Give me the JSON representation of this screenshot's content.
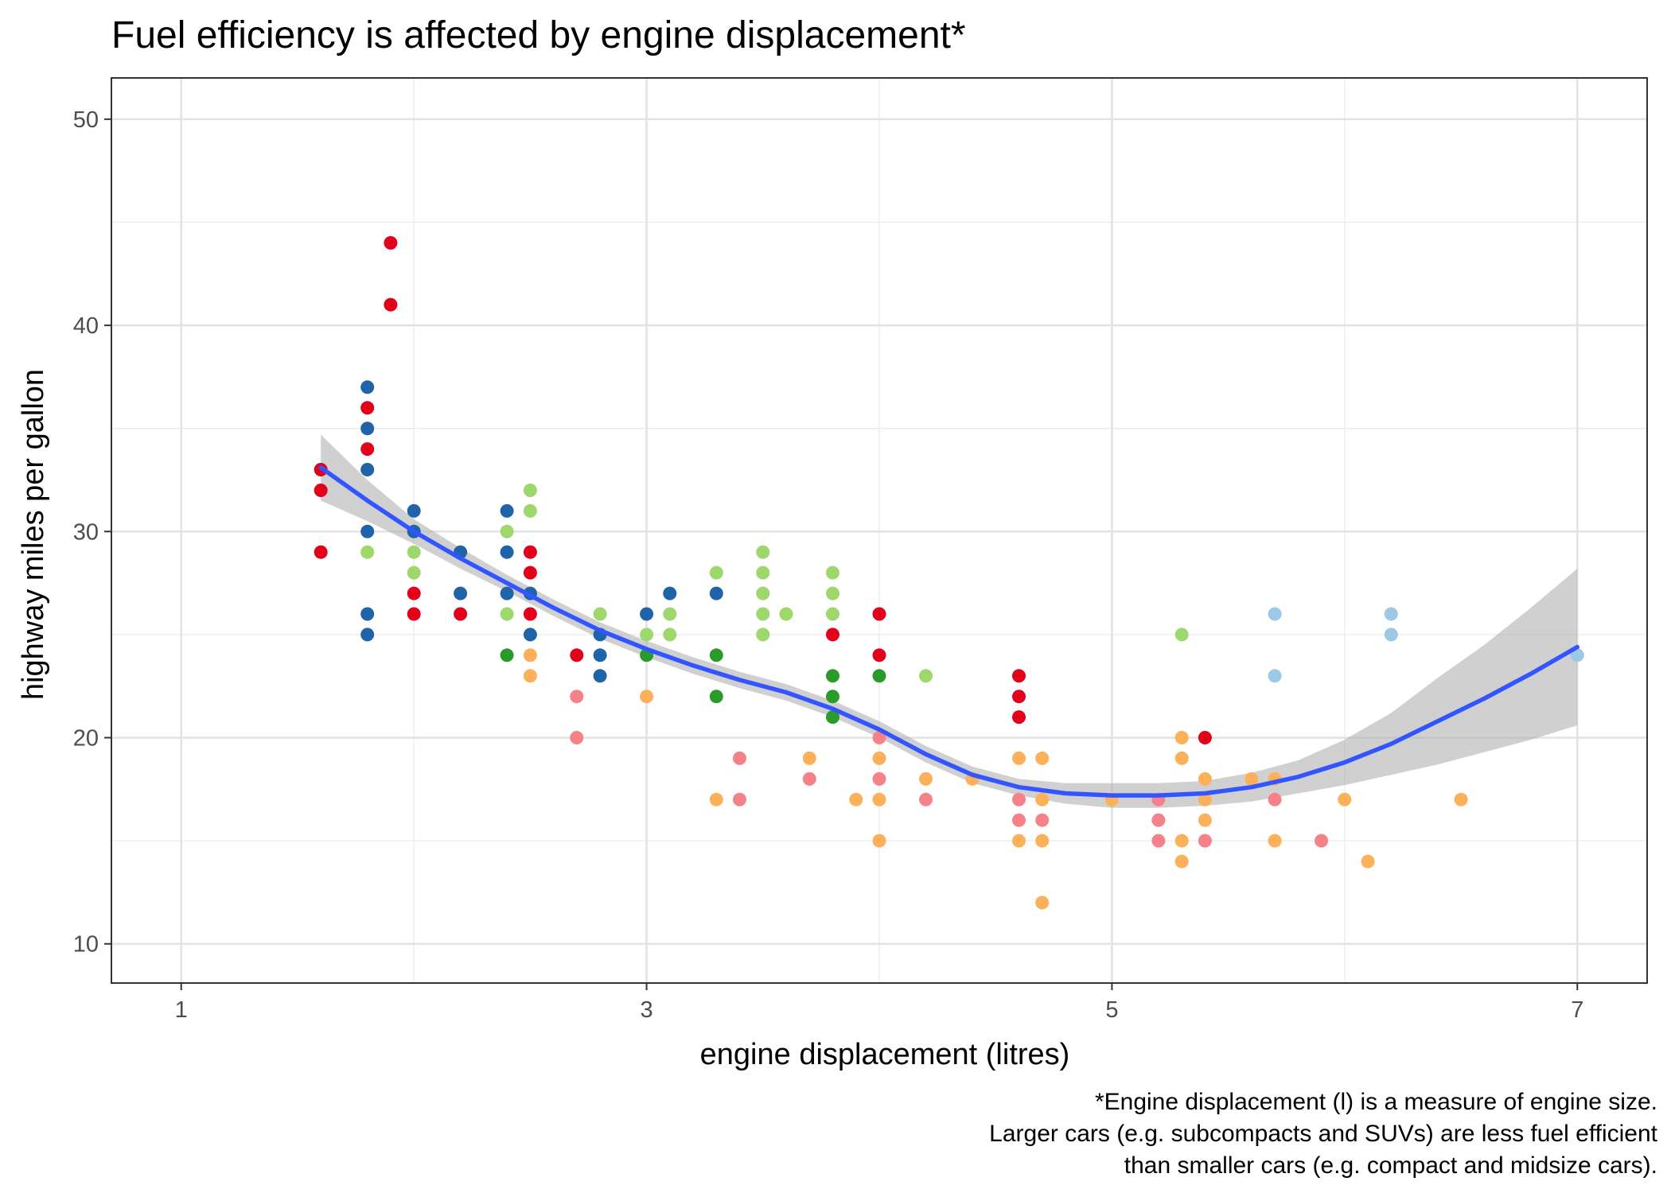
{
  "chart_data": {
    "type": "scatter",
    "title": "Fuel efficiency is affected by engine displacement*",
    "xlabel": "engine displacement (litres)",
    "ylabel": "highway miles per gallon",
    "xlim": [
      0.7,
      7.3
    ],
    "ylim": [
      8.1,
      52
    ],
    "x_ticks": [
      1,
      3,
      5,
      7
    ],
    "y_ticks": [
      10,
      20,
      30,
      40,
      50
    ],
    "grid": true,
    "legend": "none",
    "caption": [
      "*Engine displacement (l) is a measure of engine size.",
      "Larger cars (e.g. subcompacts and SUVs) are less fuel efficient",
      "than smaller cars (e.g. compact and midsize cars)."
    ],
    "colors": {
      "red": "#e3001b",
      "blue": "#1f63a8",
      "lightgreen": "#9ed86c",
      "darkgreen": "#2a9a2a",
      "orange": "#fdb05a",
      "pink": "#f58189",
      "lightblue": "#9dc8e6",
      "smooth": "#3355ff",
      "band": "#b3b3b3"
    },
    "points": [
      {
        "x": 1.6,
        "y": 33,
        "c": "red"
      },
      {
        "x": 1.6,
        "y": 32,
        "c": "red"
      },
      {
        "x": 1.6,
        "y": 29,
        "c": "red"
      },
      {
        "x": 1.8,
        "y": 37,
        "c": "blue"
      },
      {
        "x": 1.8,
        "y": 36,
        "c": "red"
      },
      {
        "x": 1.8,
        "y": 35,
        "c": "blue"
      },
      {
        "x": 1.8,
        "y": 34,
        "c": "red"
      },
      {
        "x": 1.8,
        "y": 33,
        "c": "blue"
      },
      {
        "x": 1.8,
        "y": 30,
        "c": "blue"
      },
      {
        "x": 1.8,
        "y": 29,
        "c": "lightgreen"
      },
      {
        "x": 1.8,
        "y": 26,
        "c": "blue"
      },
      {
        "x": 1.8,
        "y": 25,
        "c": "blue"
      },
      {
        "x": 1.9,
        "y": 44,
        "c": "red"
      },
      {
        "x": 1.9,
        "y": 41,
        "c": "red"
      },
      {
        "x": 2.0,
        "y": 31,
        "c": "blue"
      },
      {
        "x": 2.0,
        "y": 30,
        "c": "blue"
      },
      {
        "x": 2.0,
        "y": 29,
        "c": "lightgreen"
      },
      {
        "x": 2.0,
        "y": 28,
        "c": "lightgreen"
      },
      {
        "x": 2.0,
        "y": 27,
        "c": "red"
      },
      {
        "x": 2.0,
        "y": 26,
        "c": "red"
      },
      {
        "x": 2.2,
        "y": 29,
        "c": "blue"
      },
      {
        "x": 2.2,
        "y": 27,
        "c": "blue"
      },
      {
        "x": 2.2,
        "y": 26,
        "c": "red"
      },
      {
        "x": 2.4,
        "y": 31,
        "c": "blue"
      },
      {
        "x": 2.4,
        "y": 30,
        "c": "lightgreen"
      },
      {
        "x": 2.4,
        "y": 29,
        "c": "blue"
      },
      {
        "x": 2.4,
        "y": 27,
        "c": "blue"
      },
      {
        "x": 2.4,
        "y": 26,
        "c": "lightgreen"
      },
      {
        "x": 2.4,
        "y": 24,
        "c": "darkgreen"
      },
      {
        "x": 2.5,
        "y": 32,
        "c": "lightgreen"
      },
      {
        "x": 2.5,
        "y": 31,
        "c": "lightgreen"
      },
      {
        "x": 2.5,
        "y": 29,
        "c": "red"
      },
      {
        "x": 2.5,
        "y": 28,
        "c": "red"
      },
      {
        "x": 2.5,
        "y": 27,
        "c": "blue"
      },
      {
        "x": 2.5,
        "y": 26,
        "c": "red"
      },
      {
        "x": 2.5,
        "y": 25,
        "c": "blue"
      },
      {
        "x": 2.5,
        "y": 24,
        "c": "orange"
      },
      {
        "x": 2.5,
        "y": 23,
        "c": "orange"
      },
      {
        "x": 2.7,
        "y": 24,
        "c": "red"
      },
      {
        "x": 2.7,
        "y": 22,
        "c": "pink"
      },
      {
        "x": 2.7,
        "y": 20,
        "c": "pink"
      },
      {
        "x": 2.8,
        "y": 26,
        "c": "lightgreen"
      },
      {
        "x": 2.8,
        "y": 25,
        "c": "blue"
      },
      {
        "x": 2.8,
        "y": 24,
        "c": "blue"
      },
      {
        "x": 2.8,
        "y": 23,
        "c": "blue"
      },
      {
        "x": 3.0,
        "y": 26,
        "c": "blue"
      },
      {
        "x": 3.0,
        "y": 25,
        "c": "lightgreen"
      },
      {
        "x": 3.0,
        "y": 24,
        "c": "darkgreen"
      },
      {
        "x": 3.0,
        "y": 22,
        "c": "orange"
      },
      {
        "x": 3.1,
        "y": 27,
        "c": "blue"
      },
      {
        "x": 3.1,
        "y": 26,
        "c": "lightgreen"
      },
      {
        "x": 3.1,
        "y": 25,
        "c": "lightgreen"
      },
      {
        "x": 3.3,
        "y": 28,
        "c": "lightgreen"
      },
      {
        "x": 3.3,
        "y": 27,
        "c": "blue"
      },
      {
        "x": 3.3,
        "y": 24,
        "c": "darkgreen"
      },
      {
        "x": 3.3,
        "y": 22,
        "c": "darkgreen"
      },
      {
        "x": 3.3,
        "y": 17,
        "c": "orange"
      },
      {
        "x": 3.4,
        "y": 19,
        "c": "pink"
      },
      {
        "x": 3.4,
        "y": 17,
        "c": "pink"
      },
      {
        "x": 3.5,
        "y": 29,
        "c": "lightgreen"
      },
      {
        "x": 3.5,
        "y": 28,
        "c": "lightgreen"
      },
      {
        "x": 3.5,
        "y": 27,
        "c": "lightgreen"
      },
      {
        "x": 3.5,
        "y": 26,
        "c": "lightgreen"
      },
      {
        "x": 3.5,
        "y": 25,
        "c": "lightgreen"
      },
      {
        "x": 3.6,
        "y": 26,
        "c": "lightgreen"
      },
      {
        "x": 3.7,
        "y": 19,
        "c": "orange"
      },
      {
        "x": 3.7,
        "y": 18,
        "c": "pink"
      },
      {
        "x": 3.8,
        "y": 28,
        "c": "lightgreen"
      },
      {
        "x": 3.8,
        "y": 27,
        "c": "lightgreen"
      },
      {
        "x": 3.8,
        "y": 26,
        "c": "lightgreen"
      },
      {
        "x": 3.8,
        "y": 25,
        "c": "red"
      },
      {
        "x": 3.8,
        "y": 23,
        "c": "darkgreen"
      },
      {
        "x": 3.8,
        "y": 22,
        "c": "darkgreen"
      },
      {
        "x": 3.8,
        "y": 21,
        "c": "darkgreen"
      },
      {
        "x": 3.9,
        "y": 17,
        "c": "orange"
      },
      {
        "x": 4.0,
        "y": 26,
        "c": "red"
      },
      {
        "x": 4.0,
        "y": 24,
        "c": "red"
      },
      {
        "x": 4.0,
        "y": 23,
        "c": "darkgreen"
      },
      {
        "x": 4.0,
        "y": 20,
        "c": "pink"
      },
      {
        "x": 4.0,
        "y": 19,
        "c": "orange"
      },
      {
        "x": 4.0,
        "y": 18,
        "c": "pink"
      },
      {
        "x": 4.0,
        "y": 17,
        "c": "orange"
      },
      {
        "x": 4.0,
        "y": 15,
        "c": "orange"
      },
      {
        "x": 4.2,
        "y": 23,
        "c": "lightgreen"
      },
      {
        "x": 4.2,
        "y": 18,
        "c": "orange"
      },
      {
        "x": 4.2,
        "y": 17,
        "c": "pink"
      },
      {
        "x": 4.4,
        "y": 18,
        "c": "orange"
      },
      {
        "x": 4.6,
        "y": 23,
        "c": "red"
      },
      {
        "x": 4.6,
        "y": 22,
        "c": "red"
      },
      {
        "x": 4.6,
        "y": 21,
        "c": "red"
      },
      {
        "x": 4.6,
        "y": 19,
        "c": "orange"
      },
      {
        "x": 4.6,
        "y": 17,
        "c": "pink"
      },
      {
        "x": 4.6,
        "y": 16,
        "c": "pink"
      },
      {
        "x": 4.6,
        "y": 15,
        "c": "orange"
      },
      {
        "x": 4.7,
        "y": 19,
        "c": "orange"
      },
      {
        "x": 4.7,
        "y": 17,
        "c": "orange"
      },
      {
        "x": 4.7,
        "y": 16,
        "c": "pink"
      },
      {
        "x": 4.7,
        "y": 15,
        "c": "orange"
      },
      {
        "x": 4.7,
        "y": 12,
        "c": "orange"
      },
      {
        "x": 5.0,
        "y": 17,
        "c": "orange"
      },
      {
        "x": 5.2,
        "y": 17,
        "c": "pink"
      },
      {
        "x": 5.2,
        "y": 16,
        "c": "pink"
      },
      {
        "x": 5.2,
        "y": 15,
        "c": "pink"
      },
      {
        "x": 5.3,
        "y": 25,
        "c": "lightgreen"
      },
      {
        "x": 5.3,
        "y": 20,
        "c": "orange"
      },
      {
        "x": 5.3,
        "y": 19,
        "c": "orange"
      },
      {
        "x": 5.3,
        "y": 15,
        "c": "orange"
      },
      {
        "x": 5.3,
        "y": 14,
        "c": "orange"
      },
      {
        "x": 5.4,
        "y": 20,
        "c": "red"
      },
      {
        "x": 5.4,
        "y": 18,
        "c": "orange"
      },
      {
        "x": 5.4,
        "y": 17,
        "c": "orange"
      },
      {
        "x": 5.4,
        "y": 16,
        "c": "orange"
      },
      {
        "x": 5.4,
        "y": 15,
        "c": "pink"
      },
      {
        "x": 5.6,
        "y": 18,
        "c": "orange"
      },
      {
        "x": 5.7,
        "y": 26,
        "c": "lightblue"
      },
      {
        "x": 5.7,
        "y": 23,
        "c": "lightblue"
      },
      {
        "x": 5.7,
        "y": 18,
        "c": "orange"
      },
      {
        "x": 5.7,
        "y": 17,
        "c": "pink"
      },
      {
        "x": 5.7,
        "y": 15,
        "c": "orange"
      },
      {
        "x": 5.9,
        "y": 15,
        "c": "pink"
      },
      {
        "x": 6.0,
        "y": 17,
        "c": "orange"
      },
      {
        "x": 6.1,
        "y": 14,
        "c": "orange"
      },
      {
        "x": 6.2,
        "y": 26,
        "c": "lightblue"
      },
      {
        "x": 6.2,
        "y": 25,
        "c": "lightblue"
      },
      {
        "x": 6.5,
        "y": 17,
        "c": "orange"
      },
      {
        "x": 7.0,
        "y": 24,
        "c": "lightblue"
      }
    ],
    "smooth": {
      "x": [
        1.6,
        1.8,
        2.0,
        2.2,
        2.4,
        2.6,
        2.8,
        3.0,
        3.2,
        3.4,
        3.6,
        3.8,
        4.0,
        4.2,
        4.4,
        4.6,
        4.8,
        5.0,
        5.2,
        5.4,
        5.6,
        5.8,
        6.0,
        6.2,
        6.4,
        6.6,
        6.8,
        7.0
      ],
      "y": [
        33.1,
        31.5,
        30.0,
        28.7,
        27.5,
        26.3,
        25.2,
        24.3,
        23.5,
        22.8,
        22.2,
        21.4,
        20.4,
        19.2,
        18.2,
        17.6,
        17.3,
        17.2,
        17.2,
        17.3,
        17.6,
        18.1,
        18.8,
        19.7,
        20.8,
        21.9,
        23.1,
        24.4
      ],
      "lower": [
        31.5,
        30.5,
        29.4,
        28.2,
        27.1,
        25.9,
        24.8,
        23.9,
        23.1,
        22.4,
        21.8,
        21.0,
        20.0,
        18.8,
        17.8,
        17.2,
        16.8,
        16.6,
        16.6,
        16.7,
        16.9,
        17.3,
        17.7,
        18.2,
        18.7,
        19.3,
        19.9,
        20.6
      ],
      "upper": [
        34.7,
        32.5,
        30.6,
        29.2,
        27.9,
        26.7,
        25.6,
        24.7,
        23.9,
        23.2,
        22.6,
        21.8,
        20.8,
        19.6,
        18.6,
        18.0,
        17.8,
        17.8,
        17.8,
        17.9,
        18.3,
        18.9,
        19.9,
        21.2,
        22.9,
        24.5,
        26.3,
        28.2
      ]
    }
  }
}
